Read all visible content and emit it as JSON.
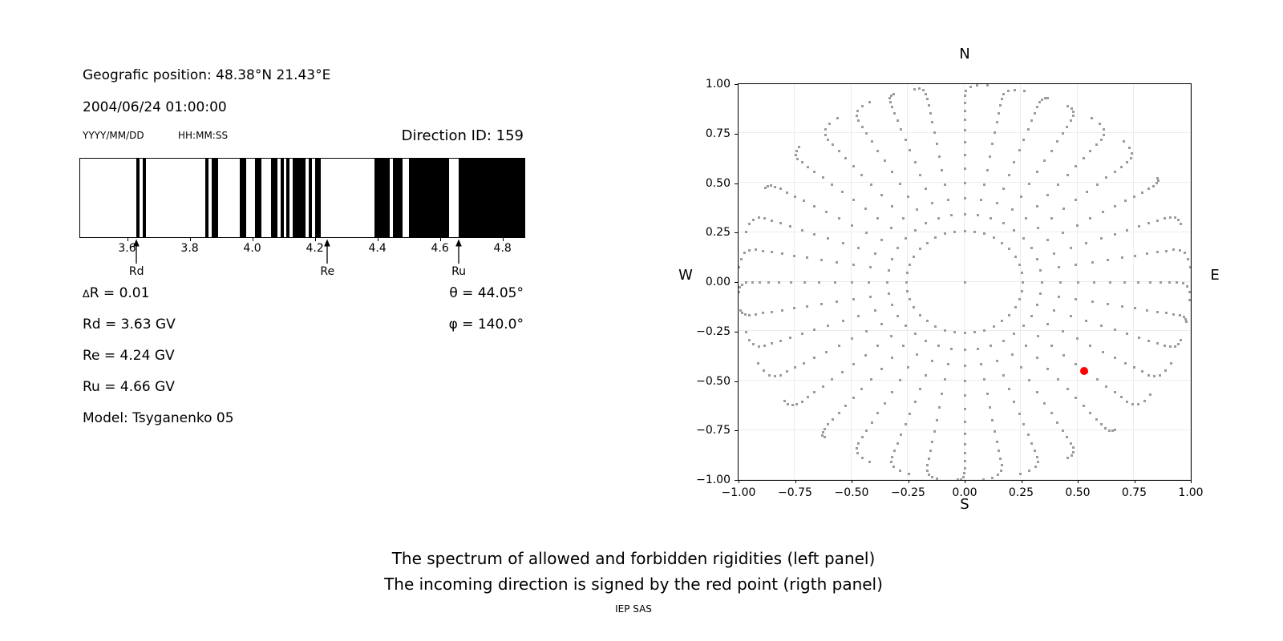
{
  "figure": {
    "header": {
      "geographic_position": "Geografic position: 48.38°N 21.43°E",
      "datetime": "2004/06/24 01:00:00",
      "date_format_label": "YYYY/MM/DD",
      "time_format_label": "HH:MM:SS",
      "direction_id_label": "Direction ID: 159"
    },
    "stats": {
      "delta_symbol": "∆",
      "delta_r_rest": "R = 0.01",
      "rd": "Rd = 3.63 GV",
      "re": "Re = 4.24 GV",
      "ru": "Ru = 4.66 GV",
      "model": "Model: Tsyganenko 05",
      "theta": "θ = 44.05°",
      "phi": "φ = 140.0°"
    },
    "caption": {
      "line1": "The spectrum of allowed and forbidden rigidities (left panel)",
      "line2": "The incoming direction is signed by the red point (rigth panel)",
      "credit": "IEP SAS"
    }
  },
  "chart_data": [
    {
      "type": "bar",
      "subtype": "rigidity-barcode",
      "title": "Spectrum of allowed (white) and forbidden (black) rigidities",
      "xlabel_unit": "GV",
      "xlim": [
        3.45,
        4.87
      ],
      "xticks": [
        3.6,
        3.8,
        4.0,
        4.2,
        4.4,
        4.6,
        4.8
      ],
      "xtick_labels": [
        "3.6",
        "3.8",
        "4.0",
        "4.2",
        "4.4",
        "4.6",
        "4.8"
      ],
      "delta_r_gv": 0.01,
      "forbidden_bands_gv": [
        [
          3.63,
          3.64
        ],
        [
          3.65,
          3.66
        ],
        [
          3.85,
          3.86
        ],
        [
          3.87,
          3.89
        ],
        [
          3.96,
          3.98
        ],
        [
          4.01,
          4.03
        ],
        [
          4.06,
          4.08
        ],
        [
          4.09,
          4.1
        ],
        [
          4.11,
          4.12
        ],
        [
          4.13,
          4.17
        ],
        [
          4.18,
          4.19
        ],
        [
          4.2,
          4.22
        ],
        [
          4.39,
          4.44
        ],
        [
          4.45,
          4.48
        ],
        [
          4.5,
          4.63
        ],
        [
          4.66,
          4.87
        ]
      ],
      "markers": [
        {
          "label": "Rd",
          "value_gv": 3.63
        },
        {
          "label": "Re",
          "value_gv": 4.24
        },
        {
          "label": "Ru",
          "value_gv": 4.66
        }
      ],
      "bar_color": "#000000"
    },
    {
      "type": "scatter",
      "subtype": "incoming-direction-grid",
      "xlim": [
        -1,
        1
      ],
      "ylim": [
        -1,
        1
      ],
      "tick_values": [
        -1,
        -0.75,
        -0.5,
        -0.25,
        0,
        0.25,
        0.5,
        0.75,
        1
      ],
      "tick_labels": [
        "−1.00",
        "−0.75",
        "−0.50",
        "−0.25",
        "0.00",
        "0.25",
        "0.50",
        "0.75",
        "1.00"
      ],
      "show_grid": true,
      "grid_line_color": "#ececec",
      "compass": {
        "top": "N",
        "bottom": "S",
        "left": "W",
        "right": "E"
      },
      "grid_pattern": {
        "azimuth_start_deg": 0,
        "azimuth_step_deg": 10,
        "azimuth_count": 36,
        "zenith_start_deg": 15,
        "zenith_step_deg": 5,
        "zenith_stop_deg": 90,
        "radius_rule": "sin(zenith)",
        "center_dot": true,
        "tip_bend_start_deg": 70,
        "tip_bend_max_deg": 6
      },
      "red_point": {
        "x": 0.53,
        "y": -0.45,
        "theta_deg": 44.05,
        "phi_deg": 140.0
      },
      "dot_color": "#9b9b9b",
      "red_color": "#ff0000"
    }
  ]
}
